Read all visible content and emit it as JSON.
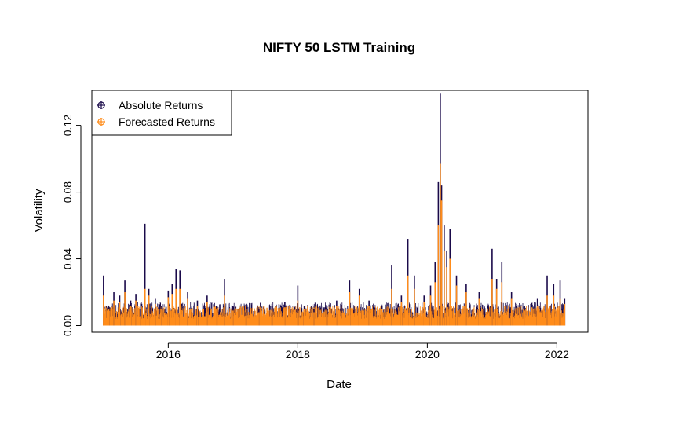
{
  "chart_data": {
    "type": "line",
    "title": "NIFTY 50 LSTM Training",
    "xlabel": "Date",
    "ylabel": "Volatility",
    "xlim": [
      2014.82,
      2022.48
    ],
    "ylim": [
      -0.004,
      0.141
    ],
    "x_ticks": [
      2016,
      2018,
      2020,
      2022
    ],
    "x_tick_labels": [
      "2016",
      "2018",
      "2020",
      "2022"
    ],
    "y_ticks": [
      0.0,
      0.04,
      0.08,
      0.12
    ],
    "y_tick_labels": [
      "0.00",
      "0.04",
      "0.08",
      "0.12"
    ],
    "legend_position": "top-left",
    "grid": false,
    "series": [
      {
        "name": "Absolute Returns",
        "color": "#1a0a4a",
        "style": "histogram",
        "x": [
          2015.0,
          2015.08,
          2015.16,
          2015.25,
          2015.33,
          2015.42,
          2015.5,
          2015.58,
          2015.64,
          2015.7,
          2015.8,
          2015.9,
          2016.0,
          2016.06,
          2016.12,
          2016.18,
          2016.3,
          2016.45,
          2016.6,
          2016.75,
          2016.87,
          2017.0,
          2017.2,
          2017.4,
          2017.6,
          2017.8,
          2018.0,
          2018.1,
          2018.25,
          2018.45,
          2018.6,
          2018.8,
          2018.95,
          2019.1,
          2019.3,
          2019.45,
          2019.6,
          2019.7,
          2019.8,
          2019.95,
          2020.05,
          2020.12,
          2020.17,
          2020.2,
          2020.22,
          2020.26,
          2020.3,
          2020.35,
          2020.45,
          2020.6,
          2020.8,
          2021.0,
          2021.07,
          2021.15,
          2021.3,
          2021.5,
          2021.7,
          2021.85,
          2021.95,
          2022.05,
          2022.12
        ],
        "values": [
          0.03,
          0.012,
          0.02,
          0.018,
          0.027,
          0.015,
          0.019,
          0.014,
          0.061,
          0.022,
          0.016,
          0.012,
          0.021,
          0.025,
          0.034,
          0.033,
          0.02,
          0.015,
          0.018,
          0.012,
          0.028,
          0.012,
          0.008,
          0.01,
          0.012,
          0.014,
          0.024,
          0.012,
          0.01,
          0.012,
          0.015,
          0.027,
          0.022,
          0.015,
          0.012,
          0.036,
          0.018,
          0.052,
          0.03,
          0.018,
          0.024,
          0.038,
          0.086,
          0.139,
          0.084,
          0.06,
          0.045,
          0.058,
          0.03,
          0.025,
          0.02,
          0.046,
          0.028,
          0.038,
          0.02,
          0.012,
          0.016,
          0.03,
          0.025,
          0.027,
          0.016
        ]
      },
      {
        "name": "Forecasted Returns",
        "color": "#ff8c1a",
        "style": "histogram",
        "x": [
          2015.0,
          2015.08,
          2015.16,
          2015.25,
          2015.33,
          2015.42,
          2015.5,
          2015.58,
          2015.64,
          2015.7,
          2015.8,
          2015.9,
          2016.0,
          2016.06,
          2016.12,
          2016.18,
          2016.3,
          2016.45,
          2016.6,
          2016.75,
          2016.87,
          2017.0,
          2017.2,
          2017.4,
          2017.6,
          2017.8,
          2018.0,
          2018.1,
          2018.25,
          2018.45,
          2018.6,
          2018.8,
          2018.95,
          2019.1,
          2019.3,
          2019.45,
          2019.6,
          2019.7,
          2019.8,
          2019.95,
          2020.05,
          2020.12,
          2020.17,
          2020.2,
          2020.22,
          2020.26,
          2020.3,
          2020.35,
          2020.45,
          2020.6,
          2020.8,
          2021.0,
          2021.07,
          2021.15,
          2021.3,
          2021.5,
          2021.7,
          2021.85,
          2021.95,
          2022.05,
          2022.12
        ],
        "values": [
          0.018,
          0.01,
          0.015,
          0.014,
          0.02,
          0.012,
          0.015,
          0.012,
          0.022,
          0.018,
          0.013,
          0.01,
          0.017,
          0.019,
          0.022,
          0.022,
          0.016,
          0.012,
          0.014,
          0.01,
          0.018,
          0.009,
          0.006,
          0.008,
          0.009,
          0.011,
          0.015,
          0.01,
          0.008,
          0.009,
          0.012,
          0.02,
          0.018,
          0.012,
          0.01,
          0.022,
          0.014,
          0.03,
          0.022,
          0.014,
          0.018,
          0.026,
          0.06,
          0.097,
          0.075,
          0.045,
          0.035,
          0.04,
          0.024,
          0.02,
          0.016,
          0.028,
          0.022,
          0.026,
          0.016,
          0.009,
          0.012,
          0.018,
          0.018,
          0.016,
          0.013
        ]
      }
    ]
  }
}
